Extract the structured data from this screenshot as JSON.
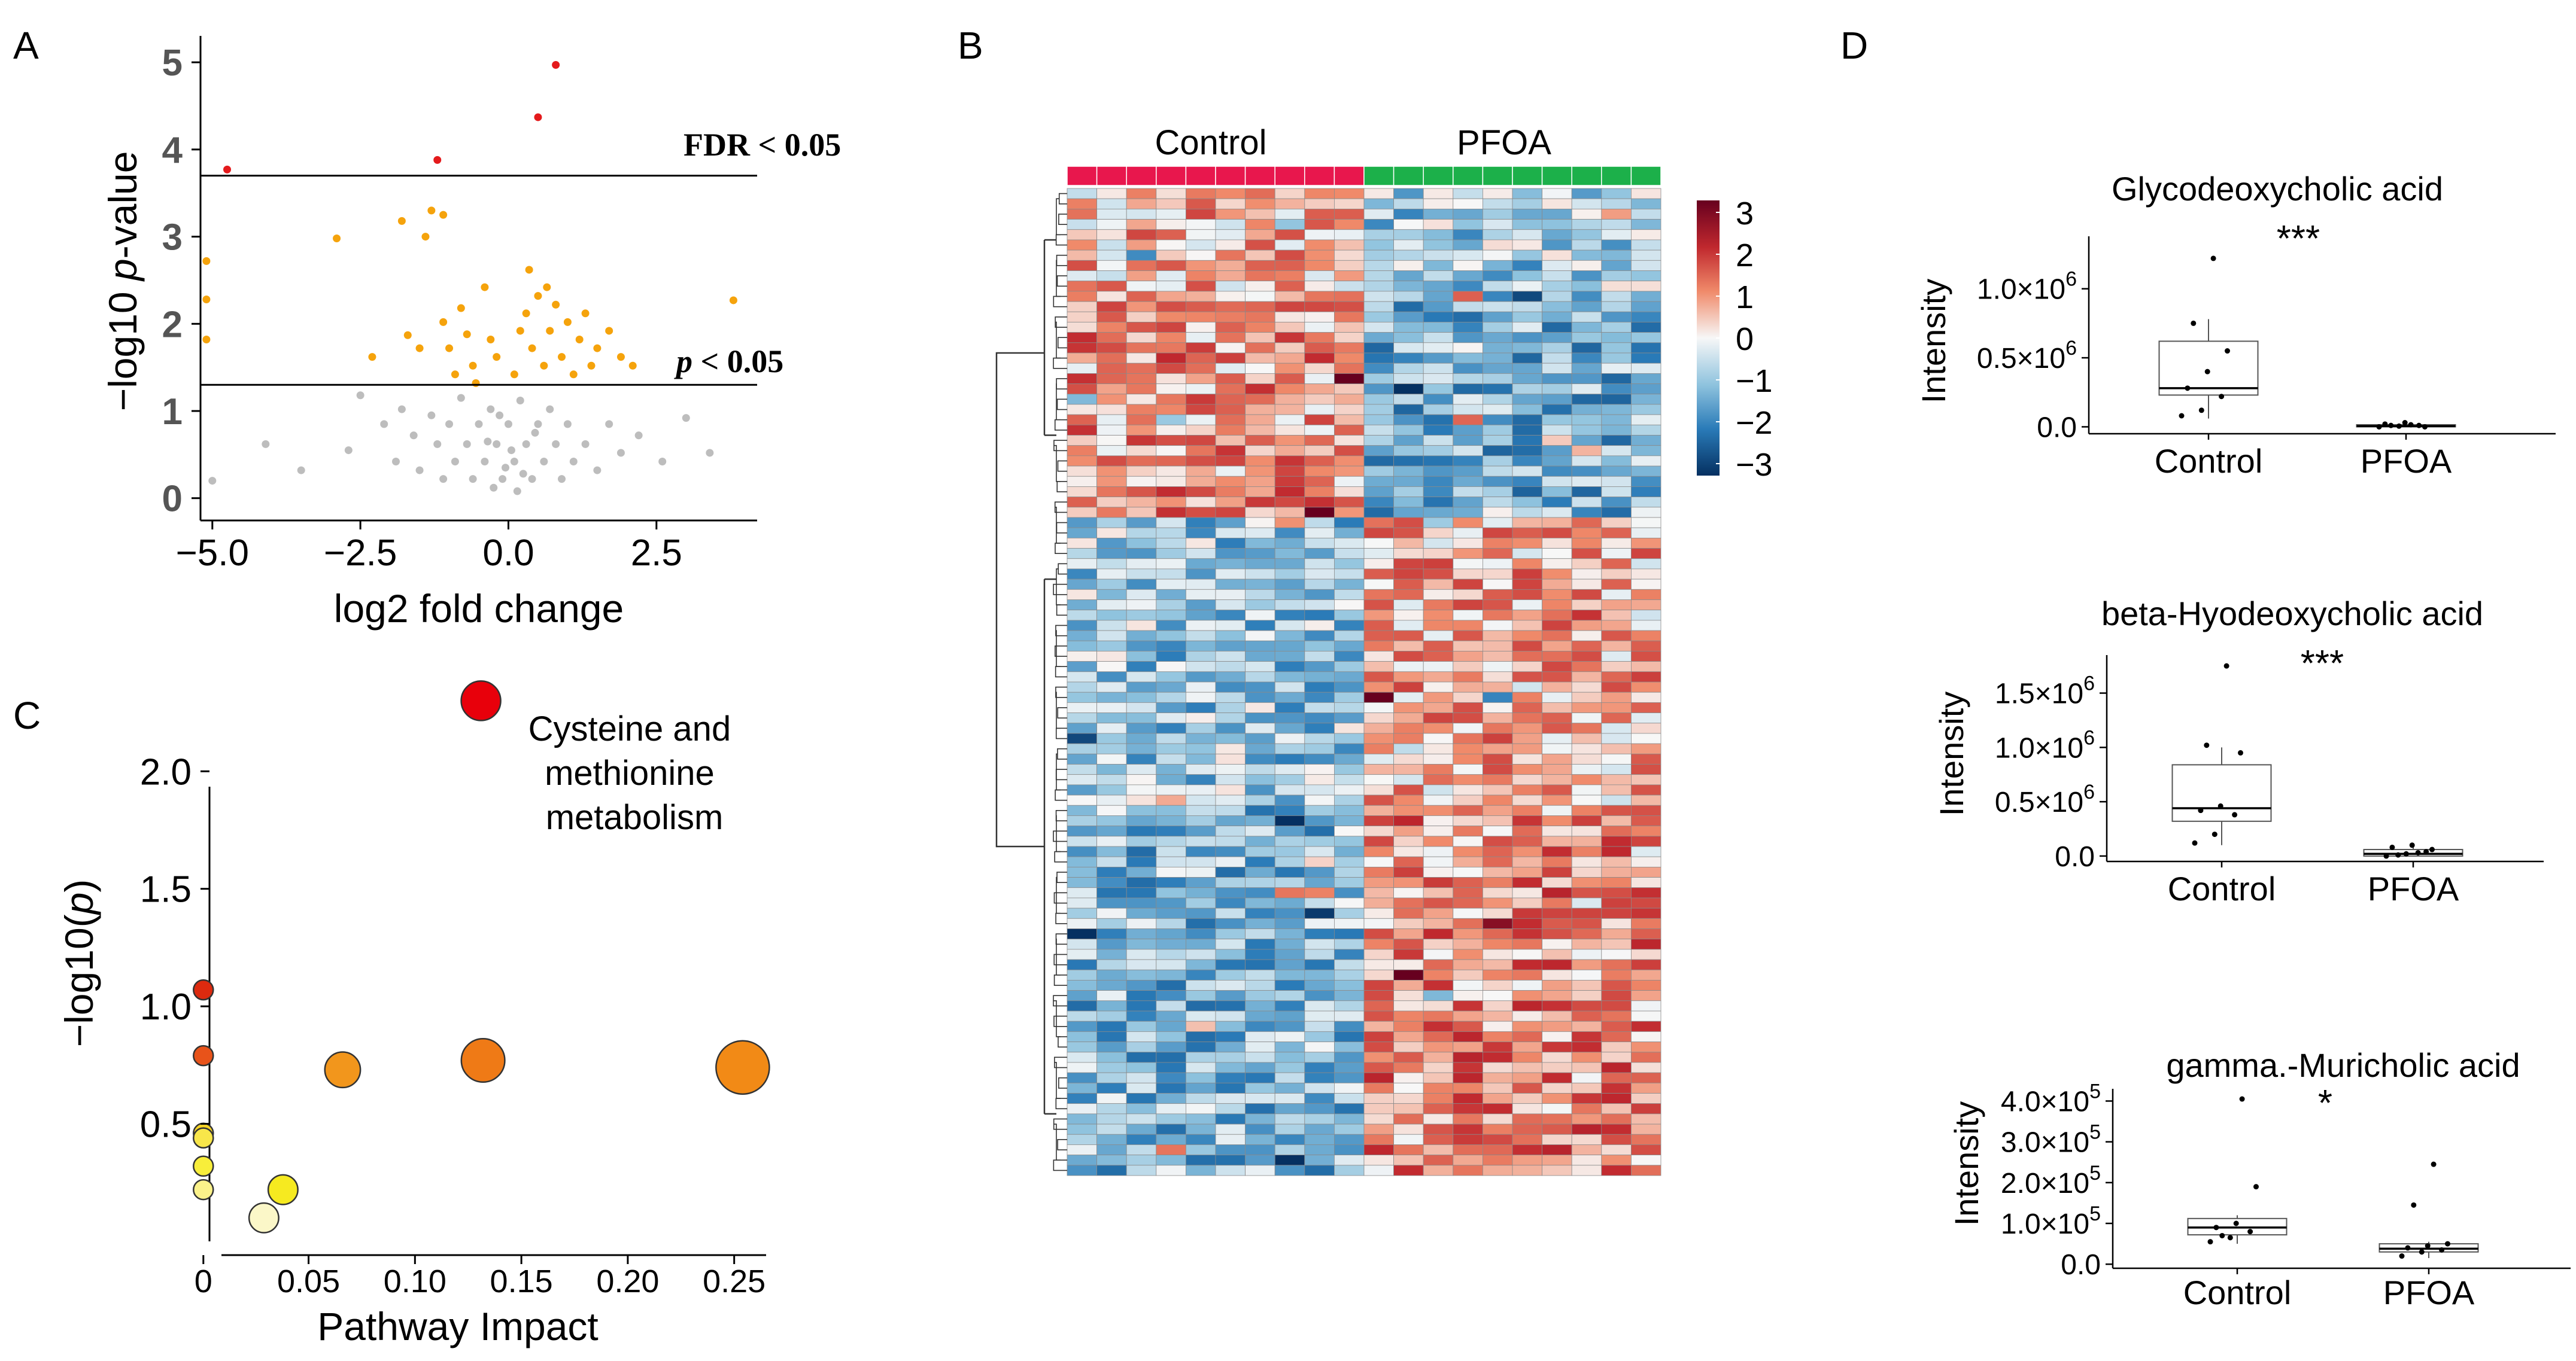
{
  "panel_letters": [
    "A",
    "B",
    "C",
    "D"
  ],
  "colors": {
    "sig_red": "#e41a1c",
    "sig_orange": "#f5a30c",
    "nonsig_gray": "#bdbdbd",
    "control_bar": "#e8174d",
    "pfoa_bar": "#1cb04a",
    "heat_low": "#053061",
    "heat_mid": "#f7f7f7",
    "heat_high": "#67001f"
  },
  "chart_data": [
    {
      "id": "A",
      "type": "scatter",
      "title": "",
      "xlabel": "log2 fold change",
      "ylabel_prefix": "−log10 ",
      "ylabel_italic": "p",
      "ylabel_suffix": "-value",
      "xlim": [
        -5.2,
        4.2
      ],
      "ylim": [
        -0.05,
        5.2
      ],
      "xticks": [
        -5.0,
        -2.5,
        0.0,
        2.5
      ],
      "xtick_labels": [
        "−5.0",
        "−2.5",
        "0.0",
        "2.5"
      ],
      "yticks": [
        0,
        1,
        2,
        3,
        4,
        5
      ],
      "ytick_labels": [
        "0",
        "1",
        "2",
        "3",
        "4",
        "5"
      ],
      "thresholds": [
        {
          "y": 3.7,
          "label_bold": "FDR",
          "label_rest": " < 0.05"
        },
        {
          "y": 1.3,
          "label_bold": "p",
          "label_rest": " < 0.05"
        }
      ],
      "fdr_points": [
        [
          0.8,
          4.97
        ],
        [
          0.5,
          4.37
        ],
        [
          -1.2,
          3.88
        ],
        [
          -4.75,
          3.77
        ]
      ],
      "sig_points": [
        [
          -5.1,
          2.72
        ],
        [
          -5.1,
          2.28
        ],
        [
          -5.1,
          1.82
        ],
        [
          -2.9,
          2.98
        ],
        [
          -1.8,
          3.18
        ],
        [
          -1.4,
          3.0
        ],
        [
          -1.3,
          3.3
        ],
        [
          -1.1,
          3.25
        ],
        [
          -2.3,
          1.62
        ],
        [
          -1.7,
          1.87
        ],
        [
          -1.5,
          1.72
        ],
        [
          -1.1,
          2.02
        ],
        [
          -1.0,
          1.72
        ],
        [
          -0.9,
          1.42
        ],
        [
          -0.8,
          2.18
        ],
        [
          -0.7,
          1.88
        ],
        [
          -0.6,
          1.52
        ],
        [
          -0.4,
          2.42
        ],
        [
          -0.3,
          1.82
        ],
        [
          -0.2,
          1.62
        ],
        [
          0.1,
          1.42
        ],
        [
          0.2,
          1.92
        ],
        [
          0.3,
          2.12
        ],
        [
          0.4,
          1.72
        ],
        [
          0.5,
          2.32
        ],
        [
          0.6,
          1.52
        ],
        [
          0.7,
          1.92
        ],
        [
          0.8,
          2.22
        ],
        [
          0.9,
          1.62
        ],
        [
          1.0,
          2.02
        ],
        [
          1.1,
          1.42
        ],
        [
          1.2,
          1.82
        ],
        [
          1.3,
          2.12
        ],
        [
          1.4,
          1.52
        ],
        [
          1.5,
          1.72
        ],
        [
          1.7,
          1.92
        ],
        [
          1.9,
          1.62
        ],
        [
          2.1,
          1.52
        ],
        [
          3.8,
          2.27
        ],
        [
          0.35,
          2.62
        ],
        [
          0.65,
          2.42
        ],
        [
          -0.55,
          1.32
        ]
      ],
      "nonsig_points": [
        [
          -4.1,
          0.62
        ],
        [
          -3.5,
          0.32
        ],
        [
          -2.7,
          0.55
        ],
        [
          -2.5,
          1.18
        ],
        [
          -2.1,
          0.85
        ],
        [
          -1.9,
          0.42
        ],
        [
          -1.8,
          1.02
        ],
        [
          -1.6,
          0.72
        ],
        [
          -1.5,
          0.32
        ],
        [
          -1.3,
          0.95
        ],
        [
          -1.2,
          0.62
        ],
        [
          -1.1,
          0.22
        ],
        [
          -1.0,
          0.85
        ],
        [
          -0.9,
          0.42
        ],
        [
          -0.8,
          1.15
        ],
        [
          -0.7,
          0.62
        ],
        [
          -0.6,
          0.22
        ],
        [
          -0.5,
          0.85
        ],
        [
          -0.4,
          0.42
        ],
        [
          -0.3,
          1.02
        ],
        [
          -0.2,
          0.62
        ],
        [
          -0.1,
          0.22
        ],
        [
          0.0,
          0.85
        ],
        [
          0.1,
          0.42
        ],
        [
          0.2,
          1.12
        ],
        [
          0.3,
          0.62
        ],
        [
          0.4,
          0.22
        ],
        [
          0.5,
          0.85
        ],
        [
          0.6,
          0.42
        ],
        [
          0.7,
          1.02
        ],
        [
          0.8,
          0.62
        ],
        [
          0.9,
          0.22
        ],
        [
          1.0,
          0.85
        ],
        [
          1.1,
          0.42
        ],
        [
          1.3,
          0.62
        ],
        [
          1.5,
          0.32
        ],
        [
          1.7,
          0.85
        ],
        [
          1.9,
          0.52
        ],
        [
          2.2,
          0.72
        ],
        [
          2.6,
          0.42
        ],
        [
          3.0,
          0.92
        ],
        [
          3.4,
          0.52
        ],
        [
          -0.25,
          0.12
        ],
        [
          0.15,
          0.08
        ],
        [
          -0.05,
          0.35
        ],
        [
          0.05,
          0.55
        ],
        [
          0.25,
          0.28
        ],
        [
          -0.35,
          0.65
        ],
        [
          0.45,
          0.75
        ],
        [
          -0.15,
          0.95
        ],
        [
          -5.0,
          0.2
        ]
      ]
    },
    {
      "id": "C",
      "type": "bubble",
      "title": "",
      "xlabel": "Pathway Impact",
      "ylabel_prefix": "−log10(",
      "ylabel_italic": "p",
      "ylabel_suffix": ")",
      "xlim": [
        -0.005,
        0.265
      ],
      "ylim": [
        0.0,
        2.1
      ],
      "xticks": [
        0,
        0.05,
        0.1,
        0.15,
        0.2,
        0.25
      ],
      "xtick_labels": [
        "0",
        "0.05",
        "0.10",
        "0.15",
        "0.20",
        "0.25"
      ],
      "yticks": [
        0.5,
        1.0,
        1.5,
        2.0
      ],
      "ytick_labels": [
        "0.5",
        "1.0",
        "1.5",
        "2.0"
      ],
      "annotation_lines": [
        "Cysteine and",
        "methionine",
        "metabolism"
      ],
      "points": [
        {
          "x": 0.131,
          "y": 2.3,
          "size": 1.0,
          "color": "#e8000b"
        },
        {
          "x": 0.0,
          "y": 1.07,
          "size": 0.5,
          "color": "#dd2a0f"
        },
        {
          "x": 0.0,
          "y": 0.79,
          "size": 0.5,
          "color": "#e8531a"
        },
        {
          "x": 0.066,
          "y": 0.73,
          "size": 0.9,
          "color": "#f2961c"
        },
        {
          "x": 0.132,
          "y": 0.77,
          "size": 1.1,
          "color": "#ef7a16"
        },
        {
          "x": 0.254,
          "y": 0.74,
          "size": 1.35,
          "color": "#f28a16"
        },
        {
          "x": 0.0,
          "y": 0.46,
          "size": 0.5,
          "color": "#f6d426"
        },
        {
          "x": 0.0,
          "y": 0.44,
          "size": 0.5,
          "color": "#f8e64a"
        },
        {
          "x": 0.0,
          "y": 0.32,
          "size": 0.5,
          "color": "#f8ee3a"
        },
        {
          "x": 0.0,
          "y": 0.22,
          "size": 0.5,
          "color": "#fbf28a"
        },
        {
          "x": 0.038,
          "y": 0.22,
          "size": 0.75,
          "color": "#f6ea20"
        },
        {
          "x": 0.029,
          "y": 0.1,
          "size": 0.75,
          "color": "#fbf7c8"
        }
      ]
    },
    {
      "id": "B",
      "type": "heatmap",
      "groups": [
        {
          "label": "Control",
          "n_columns": 10
        },
        {
          "label": "PFOA",
          "n_columns": 10
        }
      ],
      "n_rows": 96,
      "color_range": [
        -3,
        3
      ],
      "legend_ticks": [
        3,
        2,
        1,
        0,
        -1,
        -2,
        -3
      ],
      "legend_labels": [
        "3",
        "2",
        "1",
        "0",
        "−1",
        "−2",
        "−3"
      ],
      "row_group_bias": [
        {
          "rows": [
            0,
            10
          ],
          "control": 0.6,
          "pfoa": -0.8
        },
        {
          "rows": [
            10,
            32
          ],
          "control": 0.9,
          "pfoa": -1.2
        },
        {
          "rows": [
            32,
            60
          ],
          "control": -0.9,
          "pfoa": 0.7
        },
        {
          "rows": [
            60,
            96
          ],
          "control": -1.1,
          "pfoa": 1.0
        }
      ]
    },
    {
      "id": "D1",
      "type": "box",
      "title": "Glycodeoxycholic acid",
      "ylabel": "Intensity",
      "significance": "***",
      "exponent": 6,
      "ylim": [
        -0.05,
        1.38
      ],
      "yticks": [
        0.0,
        0.5,
        1.0
      ],
      "ytick_mantissas": [
        "0.0",
        "0.5×10",
        "1.0×10"
      ],
      "categories": [
        "Control",
        "PFOA"
      ],
      "boxes": [
        {
          "q1": 0.23,
          "median": 0.28,
          "q3": 0.62,
          "whisker_low": 0.06,
          "whisker_high": 0.78,
          "points": [
            0.08,
            0.12,
            0.22,
            0.28,
            0.4,
            0.55,
            0.75,
            1.22
          ]
        },
        {
          "q1": 0.0,
          "median": 0.005,
          "q3": 0.015,
          "whisker_low": 0.0,
          "whisker_high": 0.03,
          "points": [
            0.0,
            0.005,
            0.01,
            0.02,
            0.03,
            0.0,
            0.01,
            0.015
          ]
        }
      ]
    },
    {
      "id": "D2",
      "type": "box",
      "title": "beta-Hyodeoxycholic acid",
      "ylabel": "Intensity",
      "significance": "***",
      "exponent": 6,
      "ylim": [
        -0.05,
        1.85
      ],
      "yticks": [
        0.0,
        0.5,
        1.0,
        1.5
      ],
      "ytick_mantissas": [
        "0.0",
        "0.5×10",
        "1.0×10",
        "1.5×10"
      ],
      "categories": [
        "Control",
        "PFOA"
      ],
      "boxes": [
        {
          "q1": 0.32,
          "median": 0.44,
          "q3": 0.84,
          "whisker_low": 0.1,
          "whisker_high": 1.0,
          "points": [
            0.12,
            0.2,
            0.38,
            0.42,
            0.46,
            0.95,
            1.02,
            1.75
          ]
        },
        {
          "q1": 0.0,
          "median": 0.02,
          "q3": 0.06,
          "whisker_low": 0.0,
          "whisker_high": 0.12,
          "points": [
            0.0,
            0.02,
            0.04,
            0.08,
            0.1,
            0.06,
            0.01,
            0.03
          ]
        }
      ]
    },
    {
      "id": "D3",
      "type": "box",
      "title": "gamma.-Muricholic acid",
      "ylabel": "Intensity",
      "significance": "*",
      "exponent": 5,
      "ylim": [
        -0.1,
        4.3
      ],
      "yticks": [
        0.0,
        1.0,
        2.0,
        3.0,
        4.0
      ],
      "ytick_mantissas": [
        "0.0",
        "1.0×10",
        "2.0×10",
        "3.0×10",
        "4.0×10"
      ],
      "categories": [
        "Control",
        "PFOA"
      ],
      "boxes": [
        {
          "q1": 0.72,
          "median": 0.9,
          "q3": 1.12,
          "whisker_low": 0.5,
          "whisker_high": 1.2,
          "points": [
            0.55,
            0.65,
            0.8,
            0.9,
            1.0,
            1.9,
            0.7,
            4.05
          ]
        },
        {
          "q1": 0.3,
          "median": 0.38,
          "q3": 0.5,
          "whisker_low": 0.15,
          "whisker_high": 0.55,
          "points": [
            0.2,
            0.3,
            0.35,
            0.4,
            0.45,
            0.5,
            1.45,
            2.45
          ]
        }
      ]
    }
  ]
}
